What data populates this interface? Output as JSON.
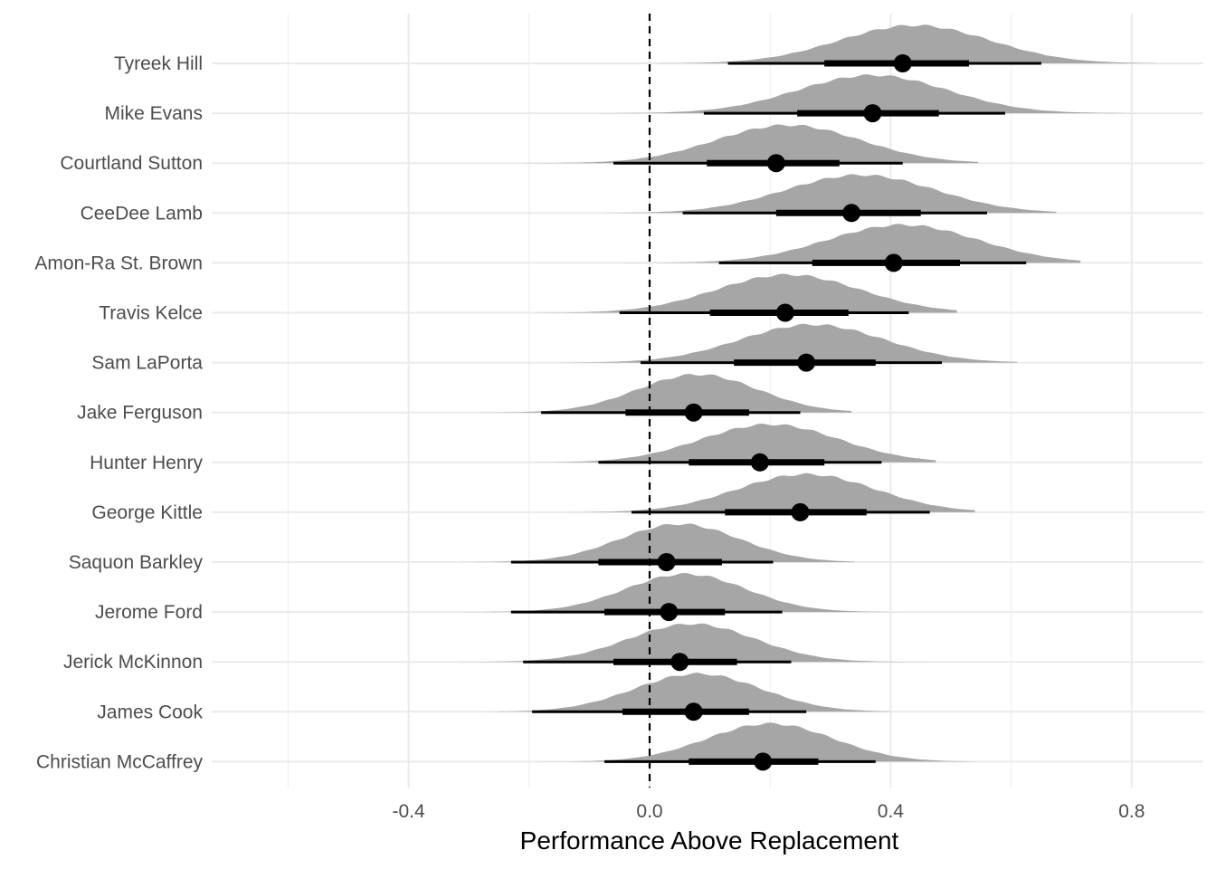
{
  "chart_data": {
    "type": "halfeye",
    "title": "",
    "xlabel": "Performance Above Replacement",
    "ylabel": "",
    "xlim": [
      -0.72,
      0.92
    ],
    "x_ticks": [
      -0.4,
      0.0,
      0.4,
      0.8
    ],
    "x_tick_labels": [
      "-0.4",
      "0.0",
      "0.4",
      "0.8"
    ],
    "x_minor_ticks": [
      -0.6,
      -0.2,
      0.2,
      0.6
    ],
    "reference_line": 0.0,
    "grid": true,
    "density_color": "#a6a6a6",
    "interval_color": "#000000",
    "categories": [
      "Tyreek Hill",
      "Mike Evans",
      "Courtland Sutton",
      "CeeDee Lamb",
      "Amon-Ra St. Brown",
      "Travis Kelce",
      "Sam LaPorta",
      "Jake Ferguson",
      "Hunter Henry",
      "George Kittle",
      "Saquon Barkley",
      "Jerome Ford",
      "Jerick McKinnon",
      "James Cook",
      "Christian McCaffrey"
    ],
    "series": [
      {
        "name": "Tyreek Hill",
        "median": 0.42,
        "q66": [
          0.29,
          0.53
        ],
        "q95": [
          0.13,
          0.65
        ],
        "density_range": [
          -0.14,
          0.84
        ],
        "mode": 0.44,
        "spread": 0.125
      },
      {
        "name": "Mike Evans",
        "median": 0.37,
        "q66": [
          0.245,
          0.48
        ],
        "q95": [
          0.09,
          0.59
        ],
        "density_range": [
          -0.13,
          0.81
        ],
        "mode": 0.37,
        "spread": 0.125
      },
      {
        "name": "Courtland Sutton",
        "median": 0.21,
        "q66": [
          0.095,
          0.315
        ],
        "q95": [
          -0.06,
          0.42
        ],
        "density_range": [
          -0.29,
          0.545
        ],
        "mode": 0.23,
        "spread": 0.12
      },
      {
        "name": "CeeDee Lamb",
        "median": 0.335,
        "q66": [
          0.21,
          0.45
        ],
        "q95": [
          0.055,
          0.56
        ],
        "density_range": [
          -0.16,
          0.675
        ],
        "mode": 0.35,
        "spread": 0.125
      },
      {
        "name": "Amon-Ra St. Brown",
        "median": 0.405,
        "q66": [
          0.27,
          0.515
        ],
        "q95": [
          0.115,
          0.625
        ],
        "density_range": [
          -0.055,
          0.715
        ],
        "mode": 0.42,
        "spread": 0.125
      },
      {
        "name": "Travis Kelce",
        "median": 0.225,
        "q66": [
          0.1,
          0.33
        ],
        "q95": [
          -0.05,
          0.43
        ],
        "density_range": [
          -0.19,
          0.51
        ],
        "mode": 0.23,
        "spread": 0.12
      },
      {
        "name": "Sam LaPorta",
        "median": 0.26,
        "q66": [
          0.14,
          0.375
        ],
        "q95": [
          -0.015,
          0.485
        ],
        "density_range": [
          -0.15,
          0.61
        ],
        "mode": 0.27,
        "spread": 0.12
      },
      {
        "name": "Jake Ferguson",
        "median": 0.073,
        "q66": [
          -0.04,
          0.165
        ],
        "q95": [
          -0.18,
          0.25
        ],
        "density_range": [
          -0.33,
          0.335
        ],
        "mode": 0.08,
        "spread": 0.1
      },
      {
        "name": "Hunter Henry",
        "median": 0.183,
        "q66": [
          0.065,
          0.29
        ],
        "q95": [
          -0.085,
          0.385
        ],
        "density_range": [
          -0.215,
          0.475
        ],
        "mode": 0.2,
        "spread": 0.115
      },
      {
        "name": "George Kittle",
        "median": 0.25,
        "q66": [
          0.125,
          0.36
        ],
        "q95": [
          -0.03,
          0.465
        ],
        "density_range": [
          -0.13,
          0.54
        ],
        "mode": 0.26,
        "spread": 0.115
      },
      {
        "name": "Saquon Barkley",
        "median": 0.028,
        "q66": [
          -0.085,
          0.12
        ],
        "q95": [
          -0.23,
          0.205
        ],
        "density_range": [
          -0.59,
          0.34
        ],
        "mode": 0.05,
        "spread": 0.1
      },
      {
        "name": "Jerome Ford",
        "median": 0.032,
        "q66": [
          -0.075,
          0.125
        ],
        "q95": [
          -0.23,
          0.22
        ],
        "density_range": [
          -0.49,
          0.41
        ],
        "mode": 0.06,
        "spread": 0.1
      },
      {
        "name": "Jerick McKinnon",
        "median": 0.05,
        "q66": [
          -0.06,
          0.145
        ],
        "q95": [
          -0.21,
          0.235
        ],
        "density_range": [
          -0.45,
          0.475
        ],
        "mode": 0.07,
        "spread": 0.105
      },
      {
        "name": "James Cook",
        "median": 0.073,
        "q66": [
          -0.045,
          0.165
        ],
        "q95": [
          -0.195,
          0.26
        ],
        "density_range": [
          -0.42,
          0.4
        ],
        "mode": 0.08,
        "spread": 0.105
      },
      {
        "name": "Christian McCaffrey",
        "median": 0.188,
        "q66": [
          0.065,
          0.28
        ],
        "q95": [
          -0.075,
          0.375
        ],
        "density_range": [
          -0.27,
          0.545
        ],
        "mode": 0.2,
        "spread": 0.105
      }
    ]
  }
}
